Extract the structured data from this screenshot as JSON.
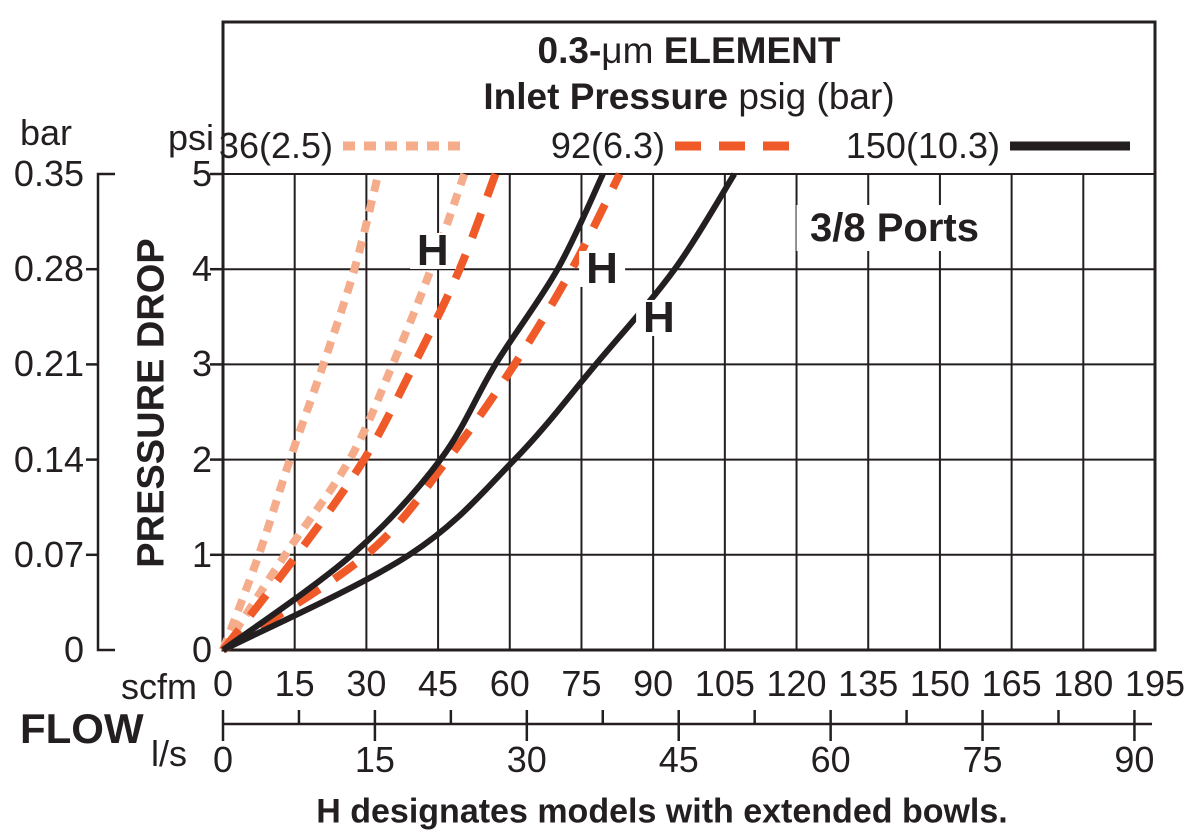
{
  "title": {
    "part1": "0.3-",
    "part2": "μm",
    "part3": " ELEMENT",
    "sub_bold": "Inlet Pressure",
    "sub_rest": " psig (bar)"
  },
  "legend": [
    {
      "label": "36(2.5)",
      "color": "#F5AC8B",
      "dash": "dotted"
    },
    {
      "label": "92(6.3)",
      "color": "#F05A28",
      "dash": "dashed"
    },
    {
      "label": "150(10.3)",
      "color": "#231F20",
      "dash": "solid"
    }
  ],
  "axes": {
    "left_primary_unit": "bar",
    "left_secondary_unit": "psi",
    "left_axis_title": "PRESSURE DROP",
    "bar_ticks": [
      "0.35",
      "0.28",
      "0.21",
      "0.14",
      "0.07",
      "0"
    ],
    "psi_ticks": [
      "5",
      "4",
      "3",
      "2",
      "1",
      "0"
    ],
    "scfm_ticks": [
      "0",
      "15",
      "30",
      "45",
      "60",
      "75",
      "90",
      "105",
      "120",
      "135",
      "150",
      "165",
      "180",
      "195"
    ],
    "ls_ticks": [
      "0",
      "15",
      "30",
      "45",
      "60",
      "75",
      "90"
    ],
    "bottom_unit_primary": "scfm",
    "bottom_unit_secondary": "l/s",
    "bottom_axis_title": "FLOW"
  },
  "annotations": {
    "ports": "3/8 Ports",
    "h_label": "H",
    "caption": "H designates models with extended bowls."
  },
  "chart_data": {
    "type": "line",
    "title": "0.3-μm ELEMENT",
    "subtitle": "Inlet Pressure psig (bar)",
    "xlabel": "FLOW scfm (l/s)",
    "ylabel": "PRESSURE DROP psi (bar)",
    "x_range_scfm": [
      0,
      195
    ],
    "x_range_ls": [
      0,
      92
    ],
    "y_range_psi": [
      0,
      5
    ],
    "y_range_bar": [
      0,
      0.35
    ],
    "grid": true,
    "legend_position": "top",
    "ink_color": "#231F20",
    "psi_samples": [
      0,
      1,
      2,
      3,
      4,
      5
    ],
    "series": [
      {
        "name": "36(2.5)",
        "style": "dotted",
        "color": "#F5AC8B",
        "points_scfm": [
          0,
          7.5,
          14,
          21,
          27.5,
          32.5
        ]
      },
      {
        "name": "36(2.5) H",
        "style": "dotted",
        "color": "#F5AC8B",
        "points_scfm": [
          0,
          13,
          26.5,
          35.5,
          43.5,
          50.5
        ]
      },
      {
        "name": "92(6.3)",
        "style": "dashed",
        "color": "#F05A28",
        "points_scfm": [
          0,
          15.5,
          29.5,
          40,
          49.5,
          57
        ]
      },
      {
        "name": "92(6.3) H",
        "style": "dashed",
        "color": "#F05A28",
        "points_scfm": [
          0,
          30,
          47,
          61,
          73,
          83
        ]
      },
      {
        "name": "150(10.3)",
        "style": "solid",
        "color": "#231F20",
        "points_scfm": [
          0,
          27,
          45.5,
          57,
          70,
          79.5
        ]
      },
      {
        "name": "150(10.3) H",
        "style": "solid",
        "color": "#231F20",
        "points_scfm": [
          0,
          39,
          61,
          78,
          94.5,
          107
        ]
      }
    ],
    "h_markers": [
      {
        "scfm": 43.9,
        "psi": 4.19
      },
      {
        "scfm": 79.3,
        "psi": 4.0
      },
      {
        "scfm": 91.2,
        "psi": 3.49
      }
    ],
    "ports_label_pos": {
      "scfm": 140.5,
      "psi": 4.43
    }
  }
}
